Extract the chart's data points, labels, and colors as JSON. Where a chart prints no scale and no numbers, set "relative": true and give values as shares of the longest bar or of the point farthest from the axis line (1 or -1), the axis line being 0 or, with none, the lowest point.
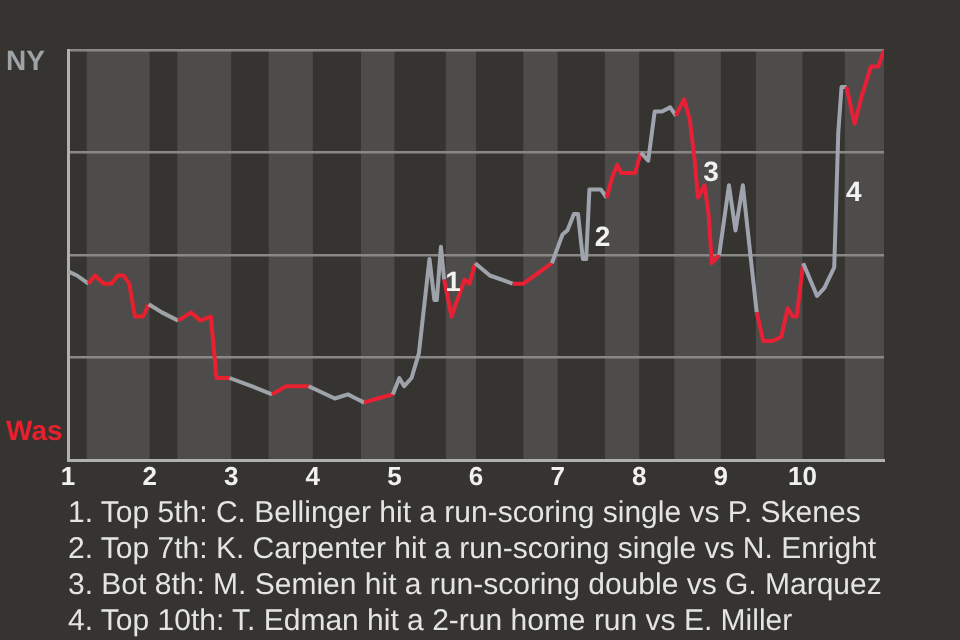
{
  "chart_data": {
    "type": "line",
    "relative": true,
    "grid": "y",
    "marker": "none",
    "line_style": "solid",
    "xlim": [
      1,
      11
    ],
    "xticks": [
      1,
      2,
      3,
      4,
      5,
      6,
      7,
      8,
      9,
      10
    ],
    "series": [
      {
        "name": "NY",
        "color": "#9ea3a6",
        "x": [
          1,
          1.11,
          1.25
        ],
        "values": [
          0.46,
          0.45,
          0.43
        ]
      },
      {
        "name": "Was",
        "color": "#e8202e",
        "x": [
          1.25,
          1.33,
          1.44,
          1.53,
          1.61,
          1.68,
          1.75,
          1.82,
          1.92,
          1.99
        ],
        "values": [
          0.43,
          0.45,
          0.43,
          0.43,
          0.45,
          0.45,
          0.43,
          0.35,
          0.35,
          0.38
        ]
      },
      {
        "color": "#9ea3a7",
        "x": [
          1.99,
          2.15,
          2.35
        ],
        "values": [
          0.38,
          0.36,
          0.34
        ]
      },
      {
        "color": "#e8202f",
        "x": [
          2.35,
          2.51,
          2.62,
          2.75,
          2.82,
          2.98
        ],
        "values": [
          0.34,
          0.36,
          0.34,
          0.35,
          0.2,
          0.2
        ]
      },
      {
        "color": "#9ea3a8",
        "x": [
          2.98,
          3.25,
          3.5
        ],
        "values": [
          0.2,
          0.18,
          0.16
        ]
      },
      {
        "color": "#e82030",
        "x": [
          3.5,
          3.67,
          3.95
        ],
        "values": [
          0.16,
          0.18,
          0.18
        ]
      },
      {
        "color": "#9ea3a9",
        "x": [
          3.95,
          4.27,
          4.43,
          4.53,
          4.63
        ],
        "values": [
          0.18,
          0.15,
          0.16,
          0.15,
          0.14
        ]
      },
      {
        "color": "#e82031",
        "x": [
          4.63,
          4.79,
          4.98
        ],
        "values": [
          0.14,
          0.15,
          0.16
        ]
      },
      {
        "color": "#9ea3aa",
        "x": [
          4.98,
          5.06,
          5.12,
          5.21,
          5.3,
          5.39,
          5.43,
          5.49,
          5.52,
          5.57,
          5.61
        ],
        "values": [
          0.16,
          0.2,
          0.18,
          0.2,
          0.26,
          0.42,
          0.49,
          0.39,
          0.39,
          0.52,
          0.44
        ]
      },
      {
        "color": "#e82032",
        "x": [
          5.61,
          5.7,
          5.77,
          5.86,
          5.92,
          5.99
        ],
        "values": [
          0.44,
          0.35,
          0.39,
          0.44,
          0.43,
          0.48
        ]
      },
      {
        "color": "#9ea3ab",
        "x": [
          5.99,
          6.17,
          6.45
        ],
        "values": [
          0.48,
          0.45,
          0.43
        ]
      },
      {
        "color": "#e82033",
        "x": [
          6.45,
          6.58,
          6.93
        ],
        "values": [
          0.43,
          0.43,
          0.48
        ]
      },
      {
        "color": "#9ea3ac",
        "x": [
          6.93,
          7.06,
          7.12,
          7.2,
          7.25,
          7.31,
          7.35,
          7.39,
          7.53,
          7.6
        ],
        "values": [
          0.48,
          0.55,
          0.56,
          0.6,
          0.6,
          0.49,
          0.49,
          0.66,
          0.66,
          0.64
        ]
      },
      {
        "color": "#e82034",
        "x": [
          7.6,
          7.67,
          7.73,
          7.78,
          7.95,
          8.02
        ],
        "values": [
          0.64,
          0.69,
          0.72,
          0.7,
          0.7,
          0.75
        ]
      },
      {
        "color": "#9ea3ad",
        "x": [
          8.02,
          8.11,
          8.19,
          8.28,
          8.38,
          8.45
        ],
        "values": [
          0.75,
          0.73,
          0.85,
          0.85,
          0.86,
          0.84
        ]
      },
      {
        "color": "#e82035",
        "x": [
          8.45,
          8.55,
          8.62,
          8.68,
          8.72,
          8.8,
          8.85,
          8.89,
          8.98
        ],
        "values": [
          0.84,
          0.88,
          0.83,
          0.73,
          0.64,
          0.67,
          0.6,
          0.48,
          0.5
        ]
      },
      {
        "color": "#9ea3ae",
        "x": [
          8.98,
          9.1,
          9.18,
          9.27,
          9.33,
          9.44
        ],
        "values": [
          0.5,
          0.67,
          0.56,
          0.67,
          0.56,
          0.36
        ]
      },
      {
        "color": "#e82036",
        "x": [
          9.44,
          9.52,
          9.63,
          9.74,
          9.82,
          9.88,
          9.93,
          10.01
        ],
        "values": [
          0.36,
          0.29,
          0.29,
          0.3,
          0.37,
          0.35,
          0.35,
          0.48
        ]
      },
      {
        "color": "#9ea3af",
        "x": [
          10.01,
          10.18,
          10.27,
          10.39,
          10.44,
          10.48,
          10.54
        ],
        "values": [
          0.48,
          0.4,
          0.42,
          0.47,
          0.8,
          0.91,
          0.91
        ]
      },
      {
        "color": "#e82037",
        "x": [
          10.54,
          10.64,
          10.73,
          10.84,
          10.93,
          11
        ],
        "values": [
          0.91,
          0.82,
          0.89,
          0.96,
          0.96,
          1
        ]
      }
    ],
    "bands": [
      {
        "axis": "x",
        "from": 1.23,
        "to": 2,
        "color": "#4e4c4a"
      },
      {
        "axis": "x",
        "from": 2.34,
        "to": 3,
        "color": "#4e4c4a"
      },
      {
        "axis": "x",
        "from": 3.46,
        "to": 4,
        "color": "#4e4c4a"
      },
      {
        "axis": "x",
        "from": 4.59,
        "to": 5,
        "color": "#4e4c4a"
      },
      {
        "axis": "x",
        "from": 5.63,
        "to": 6,
        "color": "#4e4c4a"
      },
      {
        "axis": "x",
        "from": 6.58,
        "to": 7,
        "color": "#4e4c4a"
      },
      {
        "axis": "x",
        "from": 7.58,
        "to": 8,
        "color": "#4e4c4a"
      },
      {
        "axis": "x",
        "from": 8.43,
        "to": 9,
        "color": "#4e4c4a"
      },
      {
        "axis": "x",
        "from": 9.43,
        "to": 10,
        "color": "#4e4c4a"
      },
      {
        "axis": "x",
        "from": 10.52,
        "to": 11,
        "color": "#4e4c4a"
      }
    ],
    "annotations": [
      {
        "text": "1",
        "x": 5.72,
        "y": 0.43
      },
      {
        "text": "2",
        "x": 7.55,
        "y": 0.54
      },
      {
        "text": "3",
        "x": 8.88,
        "y": 0.7
      },
      {
        "text": "4",
        "x": 10.63,
        "y": 0.65
      },
      "1. Top 5th: C. Bellinger hit a run-scoring single vs P. Skenes",
      "2. Top 7th: K. Carpenter hit a run-scoring single vs N. Enright",
      "3. Bot 8th: M. Semien hit a run-scoring double vs G. Marquez",
      "4. Top 10th: T. Edman hit a 2-run home run vs E. Miller"
    ]
  }
}
